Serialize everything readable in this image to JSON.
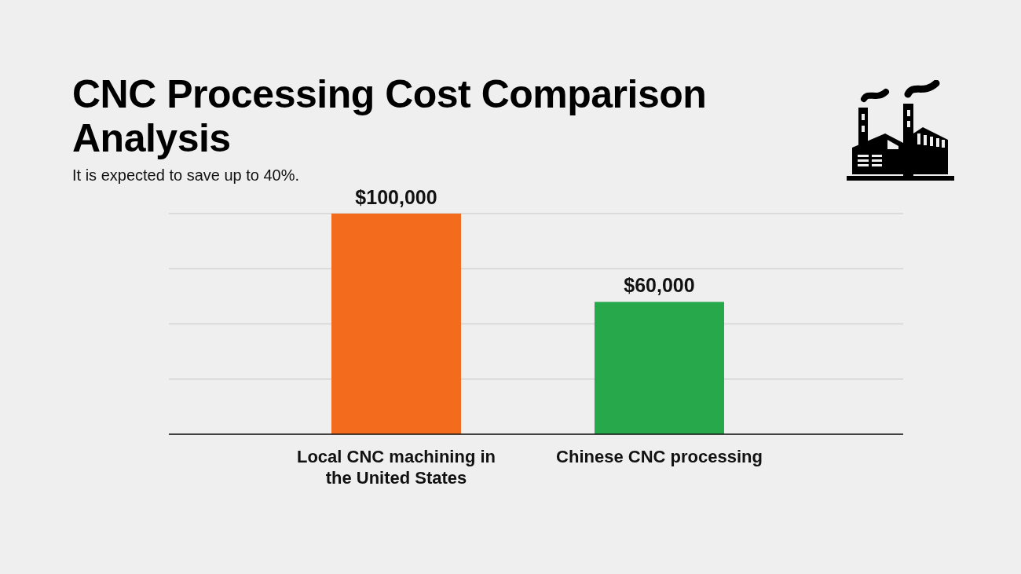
{
  "chart_data": {
    "type": "bar",
    "title": "CNC Processing Cost Comparison Analysis",
    "subtitle": "It is expected to save up to 40%.",
    "categories": [
      "Local CNC machining in the United States",
      "Chinese CNC processing"
    ],
    "values": [
      100000,
      60000
    ],
    "colors": [
      "#f36c1e",
      "#27a84a"
    ],
    "value_labels": [
      "$100,000",
      "$60,000"
    ],
    "grid": "y",
    "tick_labels": "x"
  }
}
